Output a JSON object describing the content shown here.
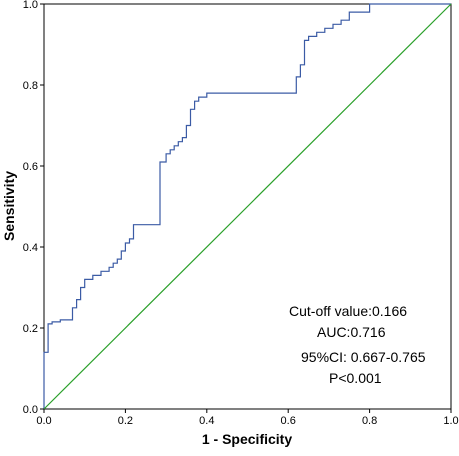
{
  "chart_data": {
    "type": "line",
    "xlabel": "1 - Specificity",
    "ylabel": "Sensitivity",
    "xlim": [
      0.0,
      1.0
    ],
    "ylim": [
      0.0,
      1.0
    ],
    "x_ticks": [
      "0.0",
      "0.2",
      "0.4",
      "0.6",
      "0.8",
      "1.0"
    ],
    "y_ticks": [
      "0.0",
      "0.2",
      "0.4",
      "0.6",
      "0.8",
      "1.0"
    ],
    "grid": false,
    "series": [
      {
        "color": "#3b5ba5",
        "step": true,
        "points": [
          [
            0.0,
            0.0
          ],
          [
            0.0,
            0.14
          ],
          [
            0.01,
            0.14
          ],
          [
            0.01,
            0.21
          ],
          [
            0.02,
            0.21
          ],
          [
            0.02,
            0.215
          ],
          [
            0.04,
            0.215
          ],
          [
            0.04,
            0.22
          ],
          [
            0.07,
            0.22
          ],
          [
            0.07,
            0.25
          ],
          [
            0.08,
            0.25
          ],
          [
            0.08,
            0.27
          ],
          [
            0.09,
            0.27
          ],
          [
            0.09,
            0.3
          ],
          [
            0.1,
            0.3
          ],
          [
            0.1,
            0.32
          ],
          [
            0.12,
            0.32
          ],
          [
            0.12,
            0.33
          ],
          [
            0.14,
            0.33
          ],
          [
            0.14,
            0.34
          ],
          [
            0.16,
            0.34
          ],
          [
            0.16,
            0.35
          ],
          [
            0.17,
            0.35
          ],
          [
            0.17,
            0.36
          ],
          [
            0.18,
            0.36
          ],
          [
            0.18,
            0.37
          ],
          [
            0.19,
            0.37
          ],
          [
            0.19,
            0.39
          ],
          [
            0.2,
            0.39
          ],
          [
            0.2,
            0.41
          ],
          [
            0.21,
            0.41
          ],
          [
            0.21,
            0.42
          ],
          [
            0.22,
            0.42
          ],
          [
            0.22,
            0.455
          ],
          [
            0.285,
            0.455
          ],
          [
            0.285,
            0.61
          ],
          [
            0.3,
            0.61
          ],
          [
            0.3,
            0.63
          ],
          [
            0.31,
            0.63
          ],
          [
            0.31,
            0.64
          ],
          [
            0.32,
            0.64
          ],
          [
            0.32,
            0.65
          ],
          [
            0.33,
            0.65
          ],
          [
            0.33,
            0.66
          ],
          [
            0.34,
            0.66
          ],
          [
            0.34,
            0.67
          ],
          [
            0.35,
            0.67
          ],
          [
            0.35,
            0.7
          ],
          [
            0.36,
            0.7
          ],
          [
            0.36,
            0.74
          ],
          [
            0.37,
            0.74
          ],
          [
            0.37,
            0.76
          ],
          [
            0.38,
            0.76
          ],
          [
            0.38,
            0.77
          ],
          [
            0.4,
            0.77
          ],
          [
            0.4,
            0.78
          ],
          [
            0.62,
            0.78
          ],
          [
            0.62,
            0.82
          ],
          [
            0.63,
            0.82
          ],
          [
            0.63,
            0.85
          ],
          [
            0.64,
            0.85
          ],
          [
            0.64,
            0.91
          ],
          [
            0.65,
            0.91
          ],
          [
            0.65,
            0.92
          ],
          [
            0.67,
            0.92
          ],
          [
            0.67,
            0.93
          ],
          [
            0.69,
            0.93
          ],
          [
            0.69,
            0.94
          ],
          [
            0.71,
            0.94
          ],
          [
            0.71,
            0.95
          ],
          [
            0.73,
            0.95
          ],
          [
            0.73,
            0.96
          ],
          [
            0.75,
            0.96
          ],
          [
            0.75,
            0.98
          ],
          [
            0.8,
            0.98
          ],
          [
            0.8,
            1.0
          ],
          [
            1.0,
            1.0
          ]
        ]
      },
      {
        "color": "#2aa02a",
        "step": false,
        "points": [
          [
            0.0,
            0.0
          ],
          [
            1.0,
            1.0
          ]
        ]
      }
    ],
    "annotations": [
      "Cut-off value:0.166",
      "AUC:0.716",
      "95%CI: 0.667-0.765",
      "P<0.001"
    ]
  }
}
